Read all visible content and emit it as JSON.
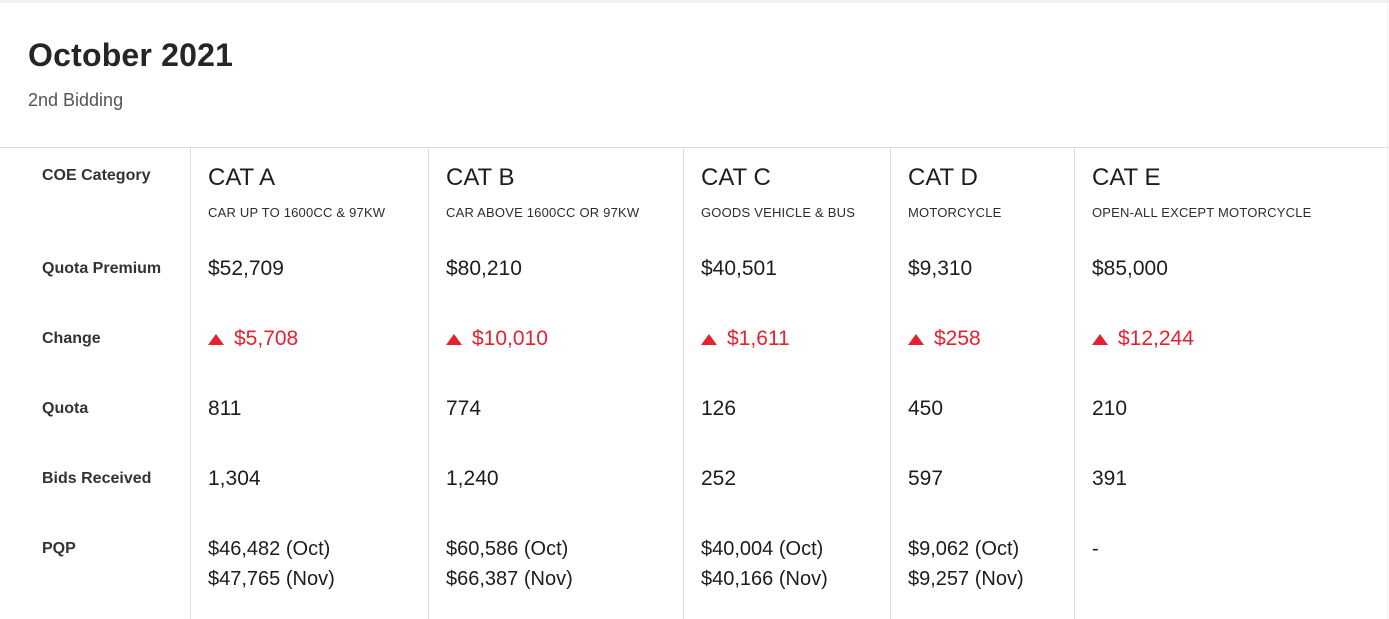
{
  "header": {
    "title": "October 2021",
    "subtitle": "2nd Bidding"
  },
  "table": {
    "row_labels": {
      "category": "COE Category",
      "quota_premium": "Quota Premium",
      "change": "Change",
      "quota": "Quota",
      "bids_received": "Bids Received",
      "pqp": "PQP"
    },
    "columns": [
      {
        "name": "CAT A",
        "description": "CAR UP TO 1600CC & 97KW",
        "quota_premium": "$52,709",
        "change": "$5,708",
        "change_direction": "up",
        "quota": "811",
        "bids_received": "1,304",
        "pqp_line1": "$46,482 (Oct)",
        "pqp_line2": "$47,765 (Nov)"
      },
      {
        "name": "CAT B",
        "description": "CAR ABOVE 1600CC OR 97KW",
        "quota_premium": "$80,210",
        "change": "$10,010",
        "change_direction": "up",
        "quota": "774",
        "bids_received": "1,240",
        "pqp_line1": "$60,586 (Oct)",
        "pqp_line2": "$66,387 (Nov)"
      },
      {
        "name": "CAT C",
        "description": "GOODS VEHICLE & BUS",
        "quota_premium": "$40,501",
        "change": "$1,611",
        "change_direction": "up",
        "quota": "126",
        "bids_received": "252",
        "pqp_line1": "$40,004 (Oct)",
        "pqp_line2": "$40,166 (Nov)"
      },
      {
        "name": "CAT D",
        "description": "MOTORCYCLE",
        "quota_premium": "$9,310",
        "change": "$258",
        "change_direction": "up",
        "quota": "450",
        "bids_received": "597",
        "pqp_line1": "$9,062 (Oct)",
        "pqp_line2": "$9,257 (Nov)"
      },
      {
        "name": "CAT E",
        "description": "OPEN-ALL EXCEPT MOTORCYCLE",
        "quota_premium": "$85,000",
        "change": "$12,244",
        "change_direction": "up",
        "quota": "210",
        "bids_received": "391",
        "pqp_line1": "-",
        "pqp_line2": ""
      }
    ]
  },
  "colors": {
    "change_up": "#e42230",
    "divider": "#dddddd",
    "title_text": "#262626",
    "subtitle_text": "#555555"
  }
}
